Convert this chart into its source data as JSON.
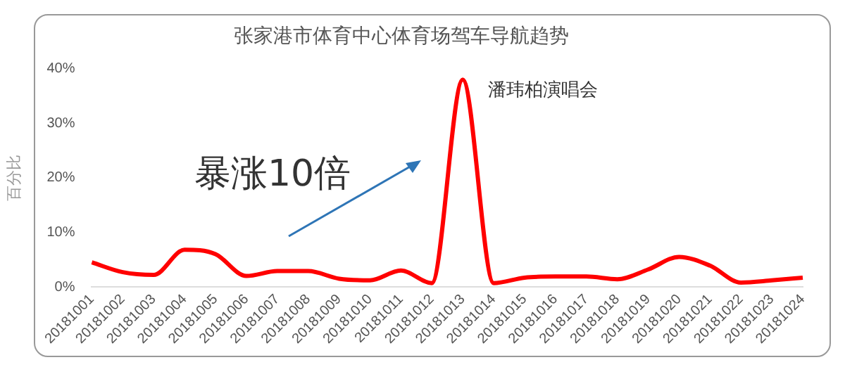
{
  "chart_data": {
    "type": "line",
    "title": "张家港市体育中心体育场驾车导航趋势",
    "ylabel": "百分比",
    "categories": [
      "20181001",
      "20181002",
      "20181003",
      "20181004",
      "20181005",
      "20181006",
      "20181007",
      "20181008",
      "20181009",
      "20181010",
      "20181011",
      "20181012",
      "20181013",
      "20181014",
      "20181015",
      "20181016",
      "20181017",
      "20181018",
      "20181019",
      "20181020",
      "20181021",
      "20181022",
      "20181023",
      "20181024"
    ],
    "series": [
      {
        "color": "#ff0000",
        "values": [
          4.5,
          2.7,
          2.2,
          6.8,
          6.0,
          2.0,
          2.9,
          2.9,
          1.5,
          1.2,
          3.0,
          0.7,
          38,
          0.7,
          1.7,
          1.9,
          1.9,
          1.4,
          3.2,
          5.5,
          3.9,
          0.8,
          1.2,
          1.7
        ]
      }
    ],
    "ylim": [
      0,
      40
    ],
    "yticks": [
      {
        "value": 0,
        "label": "0%"
      },
      {
        "value": 10,
        "label": "10%"
      },
      {
        "value": 20,
        "label": "20%"
      },
      {
        "value": 30,
        "label": "30%"
      },
      {
        "value": 40,
        "label": "40%"
      }
    ],
    "annotations": [
      "暴涨10倍",
      {
        "text": "潘玮柏演唱会",
        "x": "20181013",
        "y": 38
      }
    ],
    "grid": false,
    "legend": false,
    "marker": "none",
    "line_style": "solid"
  }
}
